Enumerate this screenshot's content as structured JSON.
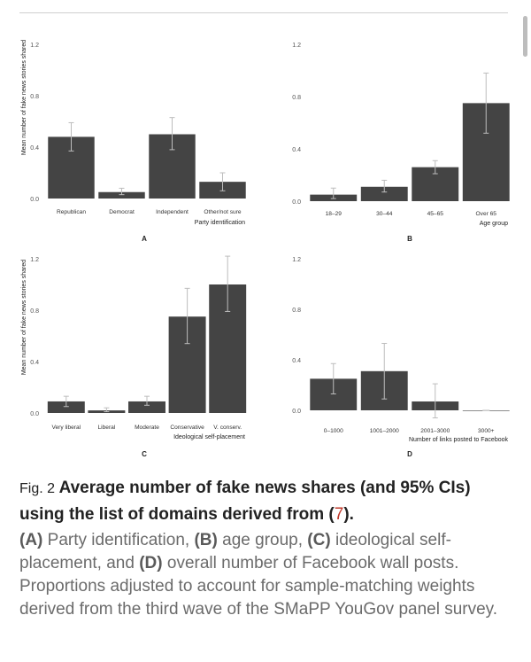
{
  "chart_data": [
    {
      "type": "bar",
      "panel": "A",
      "categories": [
        "Republican",
        "Democrat",
        "Independent",
        "Other/not sure"
      ],
      "values": [
        0.48,
        0.05,
        0.5,
        0.13
      ],
      "ci_low": [
        0.37,
        0.03,
        0.38,
        0.06
      ],
      "ci_high": [
        0.59,
        0.08,
        0.63,
        0.2
      ],
      "xlabel": "Party identification",
      "ylabel": "Mean number of fake news stories shared",
      "ylim": [
        0,
        1.3
      ],
      "yticks": [
        "0.0",
        "0.4",
        "0.8",
        "1.2"
      ],
      "grid": false
    },
    {
      "type": "bar",
      "panel": "B",
      "categories": [
        "18–29",
        "30–44",
        "45–65",
        "Over 65"
      ],
      "values": [
        0.05,
        0.11,
        0.26,
        0.75
      ],
      "ci_low": [
        0.02,
        0.07,
        0.21,
        0.52
      ],
      "ci_high": [
        0.1,
        0.16,
        0.31,
        0.98
      ],
      "xlabel": "Age group",
      "ylabel": "",
      "ylim": [
        0,
        1.3
      ],
      "yticks": [
        "0.0",
        "0.4",
        "0.8",
        "1.2"
      ],
      "grid": false
    },
    {
      "type": "bar",
      "panel": "C",
      "categories": [
        "Very liberal",
        "Liberal",
        "Moderate",
        "Conservative",
        "V. conserv."
      ],
      "values": [
        0.09,
        0.02,
        0.09,
        0.75,
        1.0
      ],
      "ci_low": [
        0.05,
        0.01,
        0.06,
        0.54,
        0.79
      ],
      "ci_high": [
        0.13,
        0.04,
        0.13,
        0.97,
        1.22
      ],
      "xlabel": "Ideological self-placement",
      "ylabel": "Mean number of fake news stories shared",
      "ylim": [
        0,
        1.3
      ],
      "yticks": [
        "0.0",
        "0.4",
        "0.8",
        "1.2"
      ],
      "grid": false
    },
    {
      "type": "bar",
      "panel": "D",
      "categories": [
        "0–1000",
        "1001–2000",
        "2001–3000",
        "3000+"
      ],
      "values": [
        0.25,
        0.31,
        0.07,
        0.0
      ],
      "ci_low": [
        0.13,
        0.09,
        -0.06,
        0.0
      ],
      "ci_high": [
        0.37,
        0.53,
        0.21,
        0.0
      ],
      "xlabel": "Number of links posted to Facebook",
      "ylabel": "",
      "ylim": [
        0,
        1.3
      ],
      "yticks": [
        "0.0",
        "0.4",
        "0.8",
        "1.2"
      ],
      "grid": false
    }
  ],
  "caption": {
    "fig_label": "Fig. 2",
    "title_text": "Average number of fake news shares (and 95% CIs) using the list of domains derived from (",
    "ref": "7",
    "title_end": ").",
    "parts": [
      {
        "letter": "(A)",
        "text": " Party identification, "
      },
      {
        "letter": "(B)",
        "text": " age group, "
      },
      {
        "letter": "(C)",
        "text": " ideological self-placement, and "
      },
      {
        "letter": "(D)",
        "text": " overall number of Facebook wall posts. Proportions adjusted to account for sample-matching weights derived from the third wave of the SMaPP YouGov panel survey."
      }
    ]
  },
  "colors": {
    "bar": "#444444",
    "error_bar": "#bdbdbd",
    "text": "#222222"
  }
}
